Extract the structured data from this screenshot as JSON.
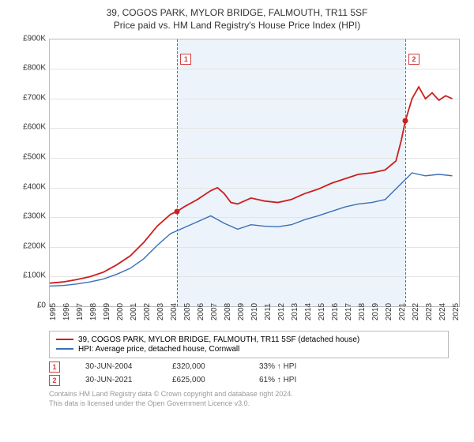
{
  "title": "39, COGOS PARK, MYLOR BRIDGE, FALMOUTH, TR11 5SF",
  "subtitle": "Price paid vs. HM Land Registry's House Price Index (HPI)",
  "chart": {
    "type": "line",
    "background_color": "#ffffff",
    "shade_color": "#dfe9f5",
    "grid_color": "#e4e4e4",
    "axis_color": "#bbbbbb",
    "ylim": [
      0,
      900
    ],
    "ytick_step": 100,
    "y_prefix": "£",
    "y_suffix": "K",
    "x_years": [
      1995,
      1996,
      1997,
      1998,
      1999,
      2000,
      2001,
      2002,
      2003,
      2004,
      2005,
      2006,
      2007,
      2008,
      2009,
      2010,
      2011,
      2012,
      2013,
      2014,
      2015,
      2016,
      2017,
      2018,
      2019,
      2020,
      2021,
      2022,
      2023,
      2024,
      2025
    ],
    "x_range": [
      1995,
      2025.5
    ],
    "shade_range": [
      2004.5,
      2021.5
    ],
    "series": [
      {
        "name": "39, COGOS PARK, MYLOR BRIDGE, FALMOUTH, TR11 5SF (detached house)",
        "color": "#cc1f1f",
        "line_width": 1.8,
        "points": [
          [
            1995,
            78
          ],
          [
            1996,
            82
          ],
          [
            1997,
            90
          ],
          [
            1998,
            100
          ],
          [
            1999,
            115
          ],
          [
            2000,
            140
          ],
          [
            2001,
            170
          ],
          [
            2002,
            215
          ],
          [
            2003,
            270
          ],
          [
            2004,
            310
          ],
          [
            2004.5,
            320
          ],
          [
            2005,
            335
          ],
          [
            2006,
            360
          ],
          [
            2007,
            390
          ],
          [
            2007.5,
            400
          ],
          [
            2008,
            380
          ],
          [
            2008.5,
            350
          ],
          [
            2009,
            345
          ],
          [
            2010,
            365
          ],
          [
            2011,
            355
          ],
          [
            2012,
            350
          ],
          [
            2013,
            360
          ],
          [
            2014,
            380
          ],
          [
            2015,
            395
          ],
          [
            2016,
            415
          ],
          [
            2017,
            430
          ],
          [
            2018,
            445
          ],
          [
            2019,
            450
          ],
          [
            2020,
            460
          ],
          [
            2020.8,
            490
          ],
          [
            2021.2,
            560
          ],
          [
            2021.5,
            625
          ],
          [
            2022,
            700
          ],
          [
            2022.5,
            740
          ],
          [
            2023,
            700
          ],
          [
            2023.5,
            720
          ],
          [
            2024,
            695
          ],
          [
            2024.5,
            710
          ],
          [
            2025,
            700
          ]
        ]
      },
      {
        "name": "HPI: Average price, detached house, Cornwall",
        "color": "#3a6fb7",
        "line_width": 1.4,
        "points": [
          [
            1995,
            68
          ],
          [
            1996,
            70
          ],
          [
            1997,
            75
          ],
          [
            1998,
            82
          ],
          [
            1999,
            92
          ],
          [
            2000,
            108
          ],
          [
            2001,
            128
          ],
          [
            2002,
            160
          ],
          [
            2003,
            205
          ],
          [
            2004,
            245
          ],
          [
            2005,
            265
          ],
          [
            2006,
            285
          ],
          [
            2007,
            305
          ],
          [
            2008,
            280
          ],
          [
            2009,
            260
          ],
          [
            2010,
            275
          ],
          [
            2011,
            270
          ],
          [
            2012,
            268
          ],
          [
            2013,
            275
          ],
          [
            2014,
            292
          ],
          [
            2015,
            305
          ],
          [
            2016,
            320
          ],
          [
            2017,
            335
          ],
          [
            2018,
            345
          ],
          [
            2019,
            350
          ],
          [
            2020,
            360
          ],
          [
            2021,
            405
          ],
          [
            2022,
            450
          ],
          [
            2023,
            440
          ],
          [
            2024,
            445
          ],
          [
            2025,
            440
          ]
        ]
      }
    ],
    "markers": [
      {
        "id": "1",
        "x": 2004.5,
        "y": 320,
        "color": "#cc1f1f",
        "box_top": 18
      },
      {
        "id": "2",
        "x": 2021.5,
        "y": 625,
        "color": "#cc1f1f",
        "box_top": 18
      }
    ]
  },
  "legend": {
    "items": [
      {
        "color": "#cc1f1f",
        "label": "39, COGOS PARK, MYLOR BRIDGE, FALMOUTH, TR11 5SF (detached house)"
      },
      {
        "color": "#3a6fb7",
        "label": "HPI: Average price, detached house, Cornwall"
      }
    ]
  },
  "transactions": [
    {
      "id": "1",
      "date": "30-JUN-2004",
      "price": "£320,000",
      "delta": "33% ↑ HPI"
    },
    {
      "id": "2",
      "date": "30-JUN-2021",
      "price": "£625,000",
      "delta": "61% ↑ HPI"
    }
  ],
  "footer_line1": "Contains HM Land Registry data © Crown copyright and database right 2024.",
  "footer_line2": "This data is licensed under the Open Government Licence v3.0."
}
